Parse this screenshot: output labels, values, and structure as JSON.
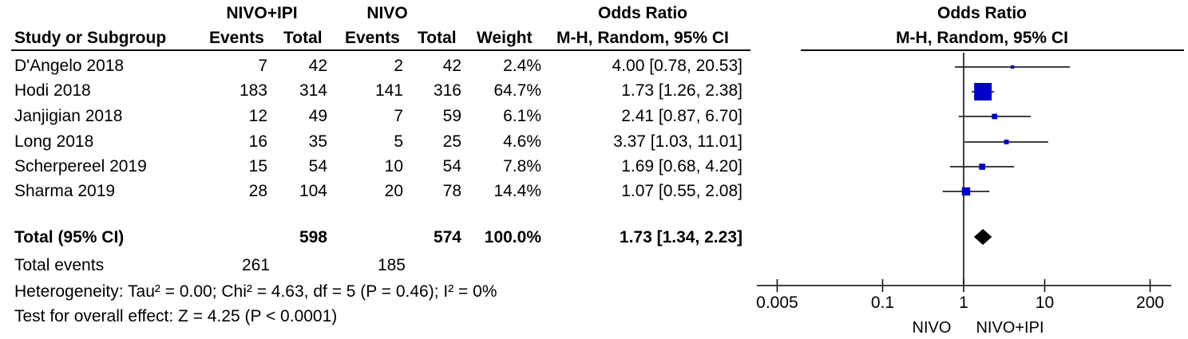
{
  "header": {
    "group1": "NIVO+IPI",
    "group2": "NIVO",
    "or_title": "Odds Ratio",
    "or_title_plot": "Odds Ratio",
    "col_study": "Study or Subgroup",
    "col_events1": "Events",
    "col_total1": "Total",
    "col_events2": "Events",
    "col_total2": "Total",
    "col_weight": "Weight",
    "col_method": "M-H, Random, 95% CI",
    "col_method_plot": "M-H, Random, 95% CI"
  },
  "studies": [
    {
      "name": "D'Angelo 2018",
      "events1": "7",
      "total1": "42",
      "events2": "2",
      "total2": "42",
      "weight": "2.4%",
      "ci_text": "4.00 [0.78, 20.53]"
    },
    {
      "name": "Hodi 2018",
      "events1": "183",
      "total1": "314",
      "events2": "141",
      "total2": "316",
      "weight": "64.7%",
      "ci_text": "1.73 [1.26, 2.38]"
    },
    {
      "name": "Janjigian 2018",
      "events1": "12",
      "total1": "49",
      "events2": "7",
      "total2": "59",
      "weight": "6.1%",
      "ci_text": "2.41 [0.87, 6.70]"
    },
    {
      "name": "Long 2018",
      "events1": "16",
      "total1": "35",
      "events2": "5",
      "total2": "25",
      "weight": "4.6%",
      "ci_text": "3.37 [1.03, 11.01]"
    },
    {
      "name": "Scherpereel 2019",
      "events1": "15",
      "total1": "54",
      "events2": "10",
      "total2": "54",
      "weight": "7.8%",
      "ci_text": "1.69 [0.68, 4.20]"
    },
    {
      "name": "Sharma 2019",
      "events1": "28",
      "total1": "104",
      "events2": "20",
      "total2": "78",
      "weight": "14.4%",
      "ci_text": "1.07 [0.55, 2.08]"
    }
  ],
  "total": {
    "label": "Total (95% CI)",
    "total1": "598",
    "total2": "574",
    "weight": "100.0%",
    "ci_text": "1.73 [1.34, 2.23]"
  },
  "events_row": {
    "label": "Total events",
    "events1": "261",
    "events2": "185"
  },
  "heterogeneity": "Heterogeneity: Tau² = 0.00; Chi² = 4.63, df = 5 (P = 0.46); I² = 0%",
  "overall_effect": "Test for overall effect: Z = 4.25 (P < 0.0001)",
  "axis": {
    "ticks": [
      "0.005",
      "0.1",
      "1",
      "10",
      "200"
    ],
    "favours_left": "NIVO",
    "favours_right": "NIVO+IPI"
  },
  "colors": {
    "marker": "#0000cc",
    "diamond": "#000000",
    "line": "#000000"
  },
  "chart_data": {
    "type": "forest",
    "scale": "log",
    "xlim": [
      0.005,
      200
    ],
    "xticks": [
      0.005,
      0.1,
      1,
      10,
      200
    ],
    "reference_line": 1,
    "studies": [
      {
        "name": "D'Angelo 2018",
        "or": 4.0,
        "lower": 0.78,
        "upper": 20.53,
        "weight": 2.4
      },
      {
        "name": "Hodi 2018",
        "or": 1.73,
        "lower": 1.26,
        "upper": 2.38,
        "weight": 64.7
      },
      {
        "name": "Janjigian 2018",
        "or": 2.41,
        "lower": 0.87,
        "upper": 6.7,
        "weight": 6.1
      },
      {
        "name": "Long 2018",
        "or": 3.37,
        "lower": 1.03,
        "upper": 11.01,
        "weight": 4.6
      },
      {
        "name": "Scherpereel 2019",
        "or": 1.69,
        "lower": 0.68,
        "upper": 4.2,
        "weight": 7.8
      },
      {
        "name": "Sharma 2019",
        "or": 1.07,
        "lower": 0.55,
        "upper": 2.08,
        "weight": 14.4
      }
    ],
    "pooled": {
      "name": "Total (95% CI)",
      "or": 1.73,
      "lower": 1.34,
      "upper": 2.23
    }
  }
}
